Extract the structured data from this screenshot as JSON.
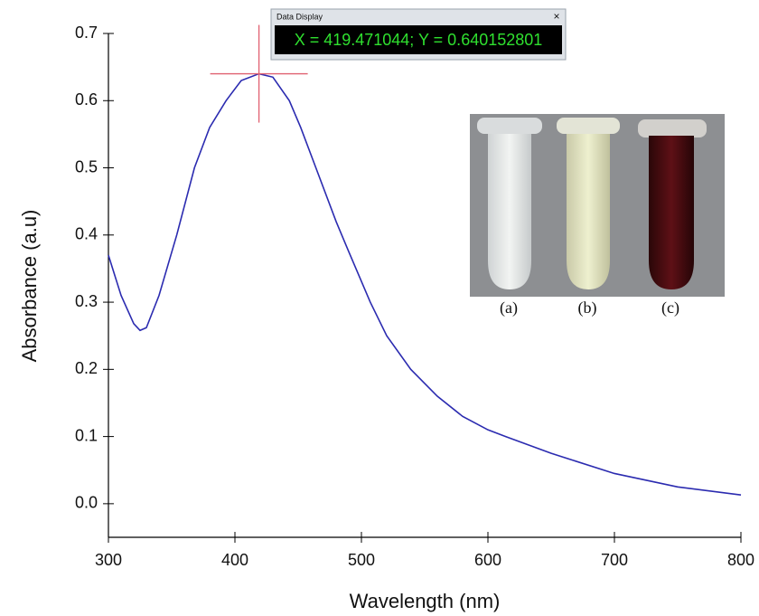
{
  "chart_data": {
    "type": "line",
    "x_label": "Wavelength (nm)",
    "y_label": "Absorbance (a.u)",
    "x": [
      300,
      310,
      320,
      325,
      330,
      340,
      354,
      368,
      380,
      393,
      405,
      419,
      430,
      443,
      452,
      464,
      480,
      490,
      507,
      520,
      539,
      560,
      580,
      600,
      614,
      650,
      700,
      750,
      800
    ],
    "values": [
      0.37,
      0.31,
      0.268,
      0.258,
      0.262,
      0.31,
      0.4,
      0.5,
      0.56,
      0.6,
      0.63,
      0.64,
      0.635,
      0.6,
      0.56,
      0.5,
      0.42,
      0.375,
      0.3,
      0.25,
      0.2,
      0.16,
      0.13,
      0.11,
      0.1,
      0.075,
      0.045,
      0.025,
      0.013
    ],
    "color": "#2b2bb0",
    "xlim": [
      300,
      800
    ],
    "xticks": [
      300,
      400,
      500,
      600,
      700,
      800
    ],
    "ylim": [
      -0.05,
      0.7
    ],
    "yticks": [
      {
        "value": 0,
        "label": "0.0"
      },
      0.1,
      0.2,
      0.3,
      0.4,
      0.5,
      0.6,
      0.7
    ],
    "data_display": {
      "title": "Data Display",
      "close": "×",
      "text": "X = 419.471044; Y = 0.640152801"
    },
    "inset_labels": [
      "(a)",
      "(b)",
      "(c)"
    ]
  }
}
